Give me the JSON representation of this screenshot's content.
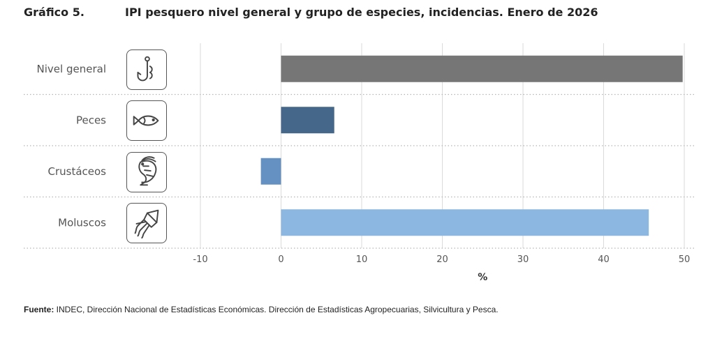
{
  "header": {
    "figure_label": "Gráfico 5.",
    "title": "IPI pesquero nivel general y grupo de especies, incidencias. Enero de 2026"
  },
  "chart_data": {
    "type": "bar",
    "orientation": "horizontal",
    "categories": [
      "Nivel general",
      "Peces",
      "Crustáceos",
      "Moluscos"
    ],
    "values": [
      49.8,
      6.6,
      -2.5,
      45.6
    ],
    "colors": [
      "#767676",
      "#456789",
      "#6490c2",
      "#8cb7e0"
    ],
    "icons": [
      "fishing-hook-icon",
      "fish-icon",
      "shrimp-icon",
      "squid-icon"
    ],
    "xlabel": "%",
    "xlim": [
      -10,
      50
    ],
    "xticks": [
      -10,
      0,
      10,
      20,
      30,
      40,
      50
    ],
    "grid": true
  },
  "footer": {
    "source_label": "Fuente:",
    "source_text": " INDEC, Dirección Nacional de Estadísticas Económicas. Dirección de Estadísticas Agropecuarias, Silvicultura y Pesca."
  }
}
